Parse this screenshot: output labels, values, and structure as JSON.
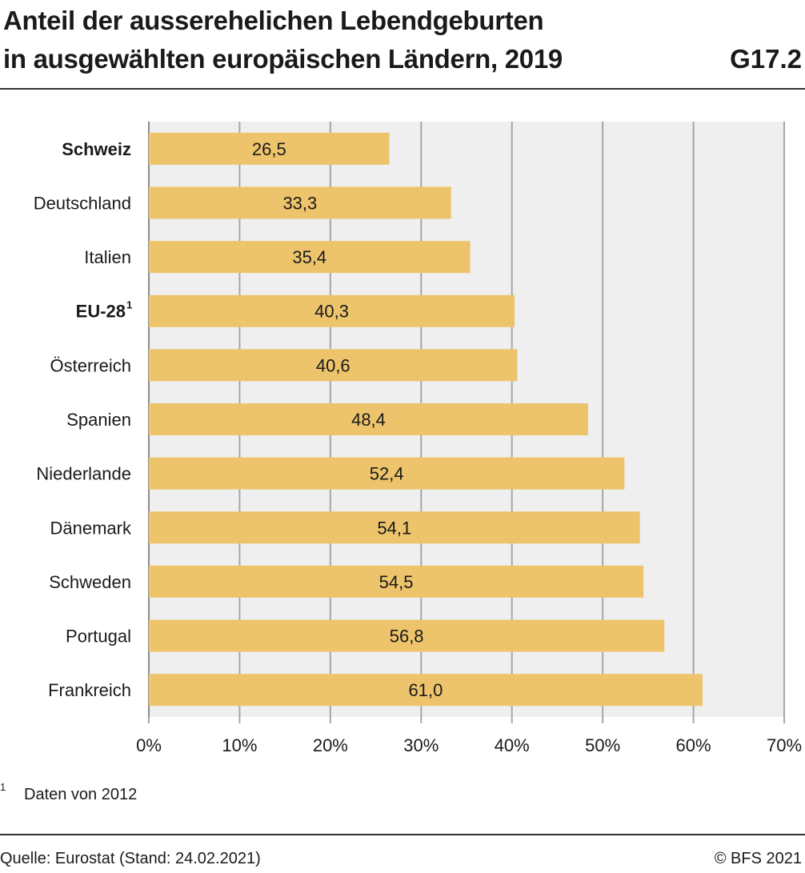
{
  "header": {
    "title_line1": "Anteil der ausserehelichen Lebendgeburten",
    "title_line2": "in ausgewählten europäischen Ländern, 2019",
    "code": "G17.2"
  },
  "chart_data": {
    "type": "bar",
    "orientation": "horizontal",
    "categories": [
      "Schweiz",
      "Deutschland",
      "Italien",
      "EU-28",
      "Österreich",
      "Spanien",
      "Niederlande",
      "Dänemark",
      "Schweden",
      "Portugal",
      "Frankreich"
    ],
    "category_superscripts": [
      "",
      "",
      "",
      "1",
      "",
      "",
      "",
      "",
      "",
      "",
      ""
    ],
    "bold_categories": [
      "Schweiz",
      "EU-28"
    ],
    "values": [
      26.5,
      33.3,
      35.4,
      40.3,
      40.6,
      48.4,
      52.4,
      54.1,
      54.5,
      56.8,
      61.0
    ],
    "value_labels": [
      "26,5",
      "33,3",
      "35,4",
      "40,3",
      "40,6",
      "48,4",
      "52,4",
      "54,1",
      "54,5",
      "56,8",
      "61,0"
    ],
    "xlim": [
      0,
      70
    ],
    "xticks": [
      0,
      10,
      20,
      30,
      40,
      50,
      60,
      70
    ],
    "xtick_labels": [
      "0%",
      "10%",
      "20%",
      "30%",
      "40%",
      "50%",
      "60%",
      "70%"
    ],
    "grid": "vertical",
    "colors": {
      "bar": "#edc46c",
      "plot_bg": "#efefef",
      "grid": "#a6a6a6",
      "text": "#1a1a1a"
    }
  },
  "footnote": {
    "marker": "1",
    "text": "Daten von 2012"
  },
  "footer": {
    "source": "Quelle: Eurostat (Stand: 24.02.2021)",
    "copyright": "© BFS 2021"
  }
}
